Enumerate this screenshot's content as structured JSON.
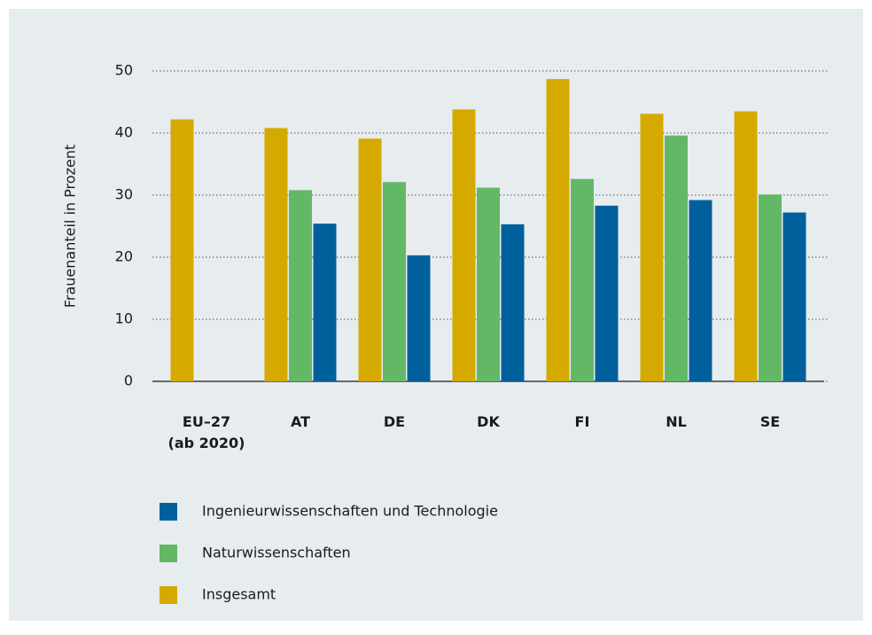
{
  "chart_data": {
    "type": "bar",
    "y_label": "Frauenanteil in Prozent",
    "categories": [
      "EU–27\n(ab 2020)",
      "AT",
      "DE",
      "DK",
      "FI",
      "NL",
      "SE"
    ],
    "series": [
      {
        "name": "Ingenieurwissenschaften und Technologie",
        "color": "#00609c",
        "values": [
          null,
          25.4,
          20.3,
          25.3,
          28.3,
          29.2,
          27.2
        ]
      },
      {
        "name": "Naturwissenschaften",
        "color": "#63b866",
        "values": [
          null,
          30.8,
          32.1,
          31.2,
          32.6,
          39.6,
          30.1
        ]
      },
      {
        "name": "Insgesamt",
        "color": "#d4aa00",
        "values": [
          42.2,
          40.8,
          39.1,
          43.8,
          48.7,
          43.1,
          43.5
        ]
      }
    ],
    "ylim": [
      0,
      50
    ],
    "yticks": [
      0,
      10,
      20,
      30,
      40,
      50
    ],
    "grid": true
  }
}
